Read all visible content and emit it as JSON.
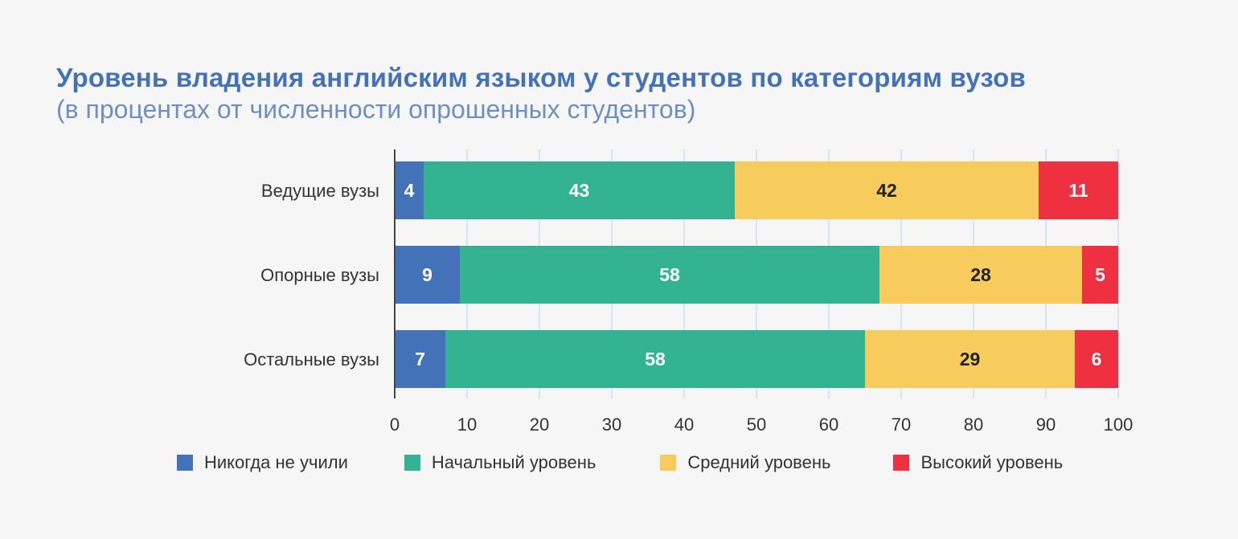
{
  "title": "Уровень владения английским языком у студентов по категориям вузов",
  "subtitle": "(в процентах от численности опрошенных студентов)",
  "colors": {
    "series": [
      "#4472b8",
      "#33b392",
      "#f8cc5c",
      "#ee3040"
    ],
    "label_text": [
      "#ffffff",
      "#ffffff",
      "#222222",
      "#ffffff"
    ],
    "grid": "#c8e2ee",
    "axis": "#444444"
  },
  "chart_data": {
    "type": "bar",
    "orientation": "horizontal",
    "stacked": true,
    "categories": [
      "Ведущие вузы",
      "Опорные вузы",
      "Остальные вузы"
    ],
    "series": [
      {
        "name": "Никогда не учили",
        "values": [
          4,
          9,
          7
        ]
      },
      {
        "name": "Начальный уровень",
        "values": [
          43,
          58,
          58
        ]
      },
      {
        "name": "Средний уровень",
        "values": [
          42,
          28,
          29
        ]
      },
      {
        "name": "Высокий уровень",
        "values": [
          11,
          5,
          6
        ]
      }
    ],
    "xlim": [
      0,
      100
    ],
    "xticks": [
      0,
      10,
      20,
      30,
      40,
      50,
      60,
      70,
      80,
      90,
      100
    ],
    "grid": true,
    "legend_position": "bottom"
  }
}
